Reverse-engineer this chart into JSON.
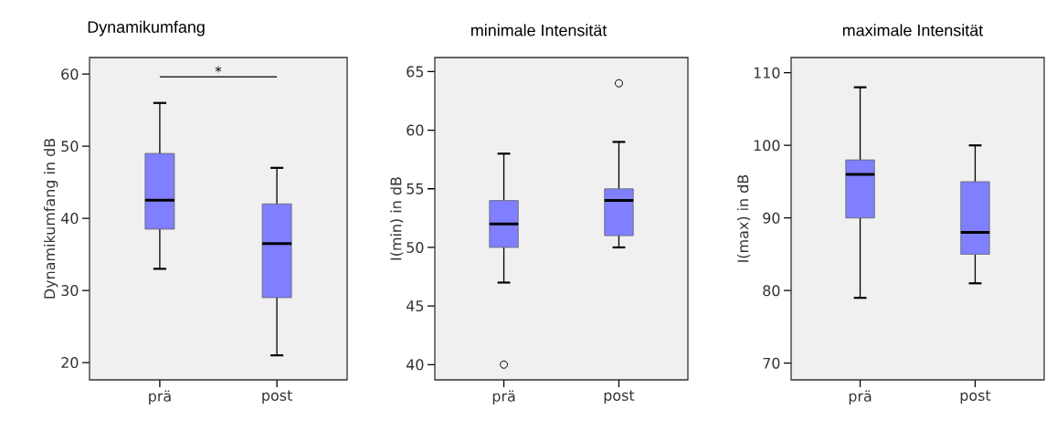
{
  "chart_data": [
    {
      "type": "box",
      "title": "Dynamikumfang",
      "ylabel": "Dynamikumfang in dB",
      "categories": [
        "prä",
        "post"
      ],
      "color": "#7f7fff",
      "boxes": [
        {
          "low": 33,
          "q1": 38.5,
          "median": 42.5,
          "q3": 49,
          "high": 56
        },
        {
          "low": 21,
          "q1": 29,
          "median": 36.5,
          "q3": 42,
          "high": 47
        }
      ],
      "ylim": [
        17.6,
        62.3
      ],
      "yticks": [
        20,
        30,
        40,
        50,
        60
      ],
      "annotations": [
        "*"
      ]
    },
    {
      "type": "box",
      "title": "minimale Intensität",
      "ylabel": "I(min) in dB",
      "categories": [
        "prä",
        "post"
      ],
      "color": "#7f7fff",
      "boxes": [
        {
          "low": 47,
          "q1": 50,
          "median": 52,
          "q3": 54,
          "high": 58,
          "outliers": [
            40
          ]
        },
        {
          "low": 50,
          "q1": 51,
          "median": 54,
          "q3": 55,
          "high": 59,
          "outliers": [
            64
          ]
        }
      ],
      "ylim": [
        38.7,
        66.2
      ],
      "yticks": [
        40,
        45,
        50,
        55,
        60,
        65
      ]
    },
    {
      "type": "box",
      "title": "maximale Intensität",
      "ylabel": "I(max) in dB",
      "categories": [
        "prä",
        "post"
      ],
      "color": "#7f7fff",
      "boxes": [
        {
          "low": 79,
          "q1": 90,
          "median": 96,
          "q3": 98,
          "high": 108
        },
        {
          "low": 81,
          "q1": 85,
          "median": 88,
          "q3": 95,
          "high": 100
        }
      ],
      "ylim": [
        67.7,
        112.1
      ],
      "yticks": [
        70,
        80,
        90,
        100,
        110
      ]
    }
  ]
}
